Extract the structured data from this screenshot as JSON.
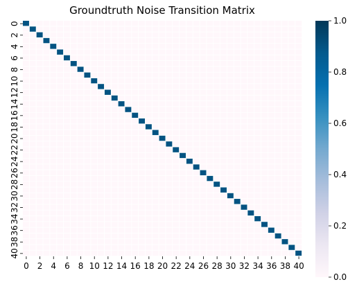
{
  "chart_data": {
    "type": "heatmap",
    "title": "Groundtruth Noise Transition Matrix",
    "size": 41,
    "x_tick_labels": [
      "0",
      "2",
      "4",
      "6",
      "8",
      "10",
      "12",
      "14",
      "16",
      "18",
      "20",
      "22",
      "24",
      "26",
      "28",
      "30",
      "32",
      "34",
      "36",
      "38",
      "40"
    ],
    "y_tick_labels": [
      "0",
      "2",
      "4",
      "6",
      "8",
      "10",
      "12",
      "14",
      "16",
      "18",
      "20",
      "22",
      "24",
      "26",
      "28",
      "30",
      "32",
      "34",
      "36",
      "38",
      "40"
    ],
    "diagonal_value": 0.9,
    "off_diagonal_value": 0.0025,
    "vmin": 0.0,
    "vmax": 1.0,
    "colorbar_ticks": [
      "0.0",
      "0.2",
      "0.4",
      "0.6",
      "0.8",
      "1.0"
    ],
    "colormap": [
      "#fff7fb",
      "#ece7f2",
      "#d0d1e6",
      "#a6bddb",
      "#74a9cf",
      "#3690c0",
      "#0570b0",
      "#045a8d",
      "#023858"
    ]
  }
}
